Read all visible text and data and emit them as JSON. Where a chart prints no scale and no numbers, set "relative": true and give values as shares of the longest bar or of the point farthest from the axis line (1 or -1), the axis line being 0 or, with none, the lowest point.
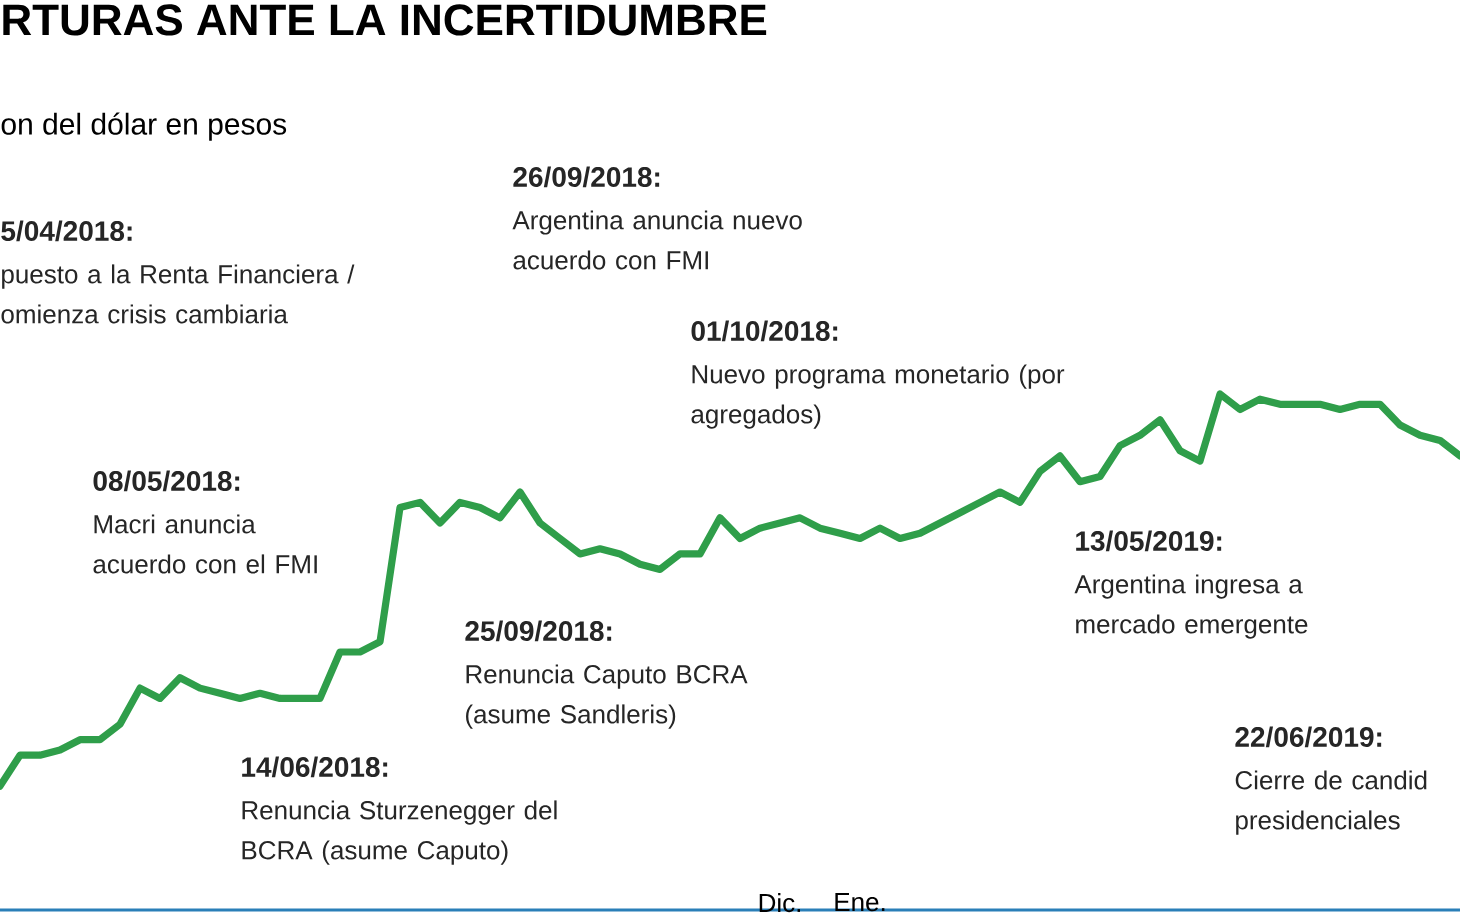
{
  "chart_data": {
    "type": "line",
    "relative": true,
    "color": "#2f9e4a",
    "title": "RTURAS ANTE LA INCERTIDUMBRE",
    "subtitle": "on del dólar en pesos",
    "categories": [
      null,
      null,
      null,
      null,
      null,
      null,
      null,
      null,
      null,
      null,
      null,
      null,
      null,
      null,
      null,
      null,
      null,
      null,
      null,
      null,
      null,
      null,
      null,
      null,
      null,
      null,
      null,
      null,
      null,
      null,
      null,
      null,
      null,
      null,
      null,
      null,
      null,
      null,
      null,
      "Dic.",
      null,
      null,
      null,
      "Ene.",
      null,
      null,
      null,
      null,
      null,
      null,
      null,
      null,
      null,
      null,
      null,
      null,
      null,
      null,
      null,
      null,
      null,
      null,
      null,
      null,
      null,
      null,
      null,
      null,
      null,
      null,
      null,
      null,
      null,
      null
    ],
    "values": [
      0.24,
      0.3,
      0.3,
      0.31,
      0.33,
      0.33,
      0.36,
      0.43,
      0.41,
      0.45,
      0.43,
      0.42,
      0.41,
      0.42,
      0.41,
      0.41,
      0.41,
      0.5,
      0.5,
      0.52,
      0.78,
      0.79,
      0.75,
      0.79,
      0.78,
      0.76,
      0.81,
      0.75,
      0.72,
      0.69,
      0.7,
      0.69,
      0.67,
      0.66,
      0.69,
      0.69,
      0.76,
      0.72,
      0.74,
      0.75,
      0.76,
      0.74,
      0.73,
      0.72,
      0.74,
      0.72,
      0.73,
      0.75,
      0.77,
      0.79,
      0.81,
      0.79,
      0.85,
      0.88,
      0.83,
      0.84,
      0.9,
      0.92,
      0.95,
      0.89,
      0.87,
      1.0,
      0.97,
      0.99,
      0.98,
      0.98,
      0.98,
      0.97,
      0.98,
      0.98,
      0.94,
      0.92,
      0.91,
      0.88
    ],
    "annotations": [
      "5/04/2018:",
      "puesto a la Renta Financiera / omienza crisis cambiaria",
      "26/09/2018:",
      "Argentina anuncia nuevo acuerdo con FMI",
      "01/10/2018:",
      "Nuevo programa monetario (por agregados)",
      "08/05/2018:",
      "Macri anuncia acuerdo con el FMI",
      "25/09/2018:",
      "Renuncia Caputo BCRA (asume Sandleris)",
      "14/06/2018:",
      "Renuncia Sturzenegger del BCRA (asume Caputo)",
      "13/05/2019:",
      "Argentina ingresa a mercado emergente",
      "22/06/2019:",
      "Cierre de candid presidenciales"
    ]
  }
}
